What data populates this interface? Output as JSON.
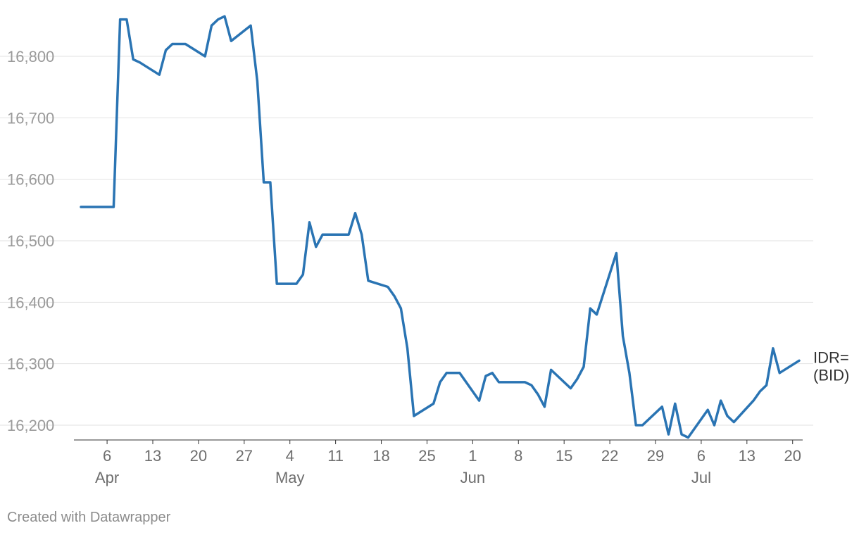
{
  "chart_data": {
    "type": "line",
    "title": "",
    "xlabel": "",
    "ylabel": "",
    "x_range": [
      "2025-04-02",
      "2025-07-21"
    ],
    "ylim": [
      16150,
      16880
    ],
    "y_ticks": [
      16200,
      16300,
      16400,
      16500,
      16600,
      16700,
      16800
    ],
    "y_tick_labels": [
      "16,200",
      "16,300",
      "16,400",
      "16,500",
      "16,600",
      "16,700",
      "16,800"
    ],
    "x_ticks": [
      {
        "date": "2025-04-06",
        "label": "6"
      },
      {
        "date": "2025-04-13",
        "label": "13"
      },
      {
        "date": "2025-04-20",
        "label": "20"
      },
      {
        "date": "2025-04-27",
        "label": "27"
      },
      {
        "date": "2025-05-04",
        "label": "4"
      },
      {
        "date": "2025-05-11",
        "label": "11"
      },
      {
        "date": "2025-05-18",
        "label": "18"
      },
      {
        "date": "2025-05-25",
        "label": "25"
      },
      {
        "date": "2025-06-01",
        "label": "1"
      },
      {
        "date": "2025-06-08",
        "label": "8"
      },
      {
        "date": "2025-06-15",
        "label": "15"
      },
      {
        "date": "2025-06-22",
        "label": "22"
      },
      {
        "date": "2025-06-29",
        "label": "29"
      },
      {
        "date": "2025-07-06",
        "label": "6"
      },
      {
        "date": "2025-07-13",
        "label": "13"
      },
      {
        "date": "2025-07-20",
        "label": "20"
      }
    ],
    "month_labels": [
      {
        "date": "2025-04-06",
        "label": "Apr"
      },
      {
        "date": "2025-05-04",
        "label": "May"
      },
      {
        "date": "2025-06-01",
        "label": "Jun"
      },
      {
        "date": "2025-07-06",
        "label": "Jul"
      }
    ],
    "grid": true,
    "legend": "none",
    "series": [
      {
        "name": "IDR= (BID)",
        "label_lines": [
          "IDR=",
          "(BID)"
        ],
        "color": "#2a74b3",
        "points": [
          [
            "2025-04-02",
            16555
          ],
          [
            "2025-04-07",
            16555
          ],
          [
            "2025-04-08",
            16860
          ],
          [
            "2025-04-09",
            16860
          ],
          [
            "2025-04-10",
            16795
          ],
          [
            "2025-04-11",
            16790
          ],
          [
            "2025-04-14",
            16770
          ],
          [
            "2025-04-15",
            16810
          ],
          [
            "2025-04-16",
            16820
          ],
          [
            "2025-04-17",
            16820
          ],
          [
            "2025-04-18",
            16820
          ],
          [
            "2025-04-21",
            16800
          ],
          [
            "2025-04-22",
            16850
          ],
          [
            "2025-04-23",
            16860
          ],
          [
            "2025-04-24",
            16865
          ],
          [
            "2025-04-25",
            16825
          ],
          [
            "2025-04-28",
            16850
          ],
          [
            "2025-04-29",
            16760
          ],
          [
            "2025-04-30",
            16595
          ],
          [
            "2025-05-01",
            16595
          ],
          [
            "2025-05-02",
            16430
          ],
          [
            "2025-05-05",
            16430
          ],
          [
            "2025-05-06",
            16445
          ],
          [
            "2025-05-07",
            16530
          ],
          [
            "2025-05-08",
            16490
          ],
          [
            "2025-05-09",
            16510
          ],
          [
            "2025-05-12",
            16510
          ],
          [
            "2025-05-13",
            16510
          ],
          [
            "2025-05-14",
            16545
          ],
          [
            "2025-05-15",
            16510
          ],
          [
            "2025-05-16",
            16435
          ],
          [
            "2025-05-19",
            16425
          ],
          [
            "2025-05-20",
            16410
          ],
          [
            "2025-05-21",
            16390
          ],
          [
            "2025-05-22",
            16325
          ],
          [
            "2025-05-23",
            16215
          ],
          [
            "2025-05-26",
            16235
          ],
          [
            "2025-05-27",
            16270
          ],
          [
            "2025-05-28",
            16285
          ],
          [
            "2025-05-29",
            16285
          ],
          [
            "2025-05-30",
            16285
          ],
          [
            "2025-06-02",
            16240
          ],
          [
            "2025-06-03",
            16280
          ],
          [
            "2025-06-04",
            16285
          ],
          [
            "2025-06-05",
            16270
          ],
          [
            "2025-06-09",
            16270
          ],
          [
            "2025-06-10",
            16265
          ],
          [
            "2025-06-11",
            16250
          ],
          [
            "2025-06-12",
            16230
          ],
          [
            "2025-06-13",
            16290
          ],
          [
            "2025-06-16",
            16260
          ],
          [
            "2025-06-17",
            16275
          ],
          [
            "2025-06-18",
            16295
          ],
          [
            "2025-06-19",
            16390
          ],
          [
            "2025-06-20",
            16380
          ],
          [
            "2025-06-23",
            16480
          ],
          [
            "2025-06-24",
            16345
          ],
          [
            "2025-06-25",
            16285
          ],
          [
            "2025-06-26",
            16200
          ],
          [
            "2025-06-27",
            16200
          ],
          [
            "2025-06-30",
            16230
          ],
          [
            "2025-07-01",
            16185
          ],
          [
            "2025-07-02",
            16235
          ],
          [
            "2025-07-03",
            16185
          ],
          [
            "2025-07-04",
            16180
          ],
          [
            "2025-07-07",
            16225
          ],
          [
            "2025-07-08",
            16200
          ],
          [
            "2025-07-09",
            16240
          ],
          [
            "2025-07-10",
            16215
          ],
          [
            "2025-07-11",
            16205
          ],
          [
            "2025-07-14",
            16240
          ],
          [
            "2025-07-15",
            16255
          ],
          [
            "2025-07-16",
            16265
          ],
          [
            "2025-07-17",
            16325
          ],
          [
            "2025-07-18",
            16285
          ],
          [
            "2025-07-21",
            16305
          ]
        ]
      }
    ]
  },
  "footer": {
    "credit": "Created with Datawrapper"
  }
}
